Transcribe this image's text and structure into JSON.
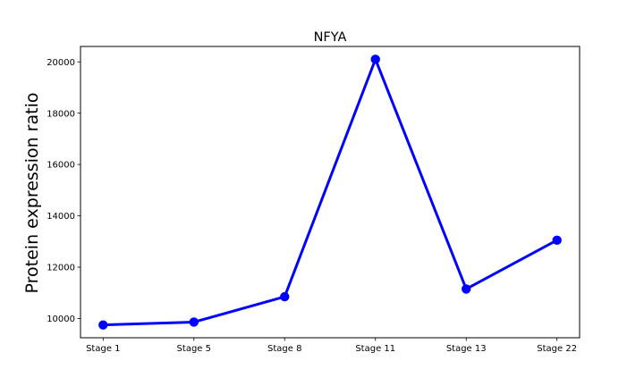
{
  "chart_data": {
    "type": "line",
    "title": "NFYA",
    "xlabel": "",
    "ylabel": "Protein expression ratio",
    "categories": [
      "Stage 1",
      "Stage 5",
      "Stage 8",
      "Stage 11",
      "Stage 13",
      "Stage 22"
    ],
    "series": [
      {
        "values": [
          9750,
          9860,
          10850,
          20100,
          11150,
          13050
        ],
        "color": "#0000ff",
        "marker": "circle"
      }
    ],
    "ylim": [
      9250,
      20600
    ],
    "yticks": [
      10000,
      12000,
      14000,
      16000,
      18000,
      20000
    ],
    "grid": false,
    "legend": false
  }
}
